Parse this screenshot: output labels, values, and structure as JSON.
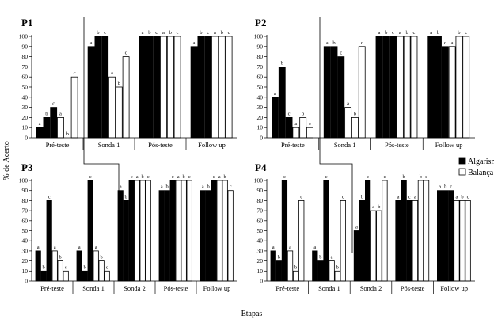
{
  "figure": {
    "ylabel": "% de Acerto",
    "xlabel": "Etapas",
    "legend": [
      {
        "name": "Algarismo",
        "fill": "#000000"
      },
      {
        "name": "Balança",
        "fill": "#ffffff"
      }
    ]
  },
  "chart_data": [
    {
      "type": "bar",
      "title": "P1",
      "ylim": [
        0,
        100
      ],
      "yticks": [
        "0",
        "10",
        "20",
        "30",
        "40",
        "50",
        "60",
        "70",
        "80",
        "90",
        "100"
      ],
      "categories": [
        "Pré-teste",
        "Sonda 1",
        "Pós-teste",
        "Follow up"
      ],
      "series": [
        {
          "name": "Algarismo",
          "values": [
            [
              10,
              20,
              30
            ],
            [
              90,
              100,
              100
            ],
            [
              100,
              100,
              100
            ],
            [
              90,
              100,
              100
            ]
          ],
          "letters": [
            [
              "a",
              "b",
              "c"
            ],
            [
              "a",
              "b",
              "c"
            ],
            [
              "a",
              "b",
              "c"
            ],
            [
              "a",
              "b",
              "c"
            ]
          ]
        },
        {
          "name": "Balança",
          "values": [
            [
              20,
              0,
              60
            ],
            [
              60,
              50,
              80
            ],
            [
              100,
              100,
              100
            ],
            [
              100,
              100,
              100
            ]
          ],
          "letters": [
            [
              "a",
              "b",
              "c"
            ],
            [
              "a",
              "b",
              "c"
            ],
            [
              "a",
              "b",
              "c"
            ],
            [
              "a",
              "b",
              "c"
            ]
          ]
        }
      ]
    },
    {
      "type": "bar",
      "title": "P2",
      "ylim": [
        0,
        100
      ],
      "yticks": [
        "0",
        "10",
        "20",
        "30",
        "40",
        "50",
        "60",
        "70",
        "80",
        "90",
        "100"
      ],
      "categories": [
        "Pré-teste",
        "Sonda 1",
        "Pós-teste",
        "Follow up"
      ],
      "series": [
        {
          "name": "Algarismo",
          "values": [
            [
              40,
              70,
              20
            ],
            [
              90,
              90,
              80
            ],
            [
              100,
              100,
              100
            ],
            [
              100,
              100,
              90
            ]
          ],
          "letters": [
            [
              "a",
              "b",
              "c"
            ],
            [
              "a",
              "b",
              "c"
            ],
            [
              "a",
              "b",
              "c"
            ],
            [
              "a",
              "b",
              "c"
            ]
          ]
        },
        {
          "name": "Balança",
          "values": [
            [
              10,
              20,
              10
            ],
            [
              30,
              20,
              90
            ],
            [
              100,
              100,
              100
            ],
            [
              90,
              100,
              100
            ]
          ],
          "letters": [
            [
              "a",
              "b",
              "c"
            ],
            [
              "a",
              "b",
              "c"
            ],
            [
              "a",
              "b",
              "c"
            ],
            [
              "a",
              "b",
              "c"
            ]
          ]
        }
      ]
    },
    {
      "type": "bar",
      "title": "P3",
      "ylim": [
        0,
        100
      ],
      "yticks": [
        "0",
        "10",
        "20",
        "30",
        "40",
        "50",
        "60",
        "70",
        "80",
        "90",
        "100"
      ],
      "categories": [
        "Pré-teste",
        "Sonda 1",
        "Sonda 2",
        "Pós-teste",
        "Follow up"
      ],
      "series": [
        {
          "name": "Algarismo",
          "values": [
            [
              30,
              10,
              80
            ],
            [
              30,
              10,
              100
            ],
            [
              90,
              80,
              100
            ],
            [
              90,
              90,
              100
            ],
            [
              90,
              90,
              100
            ]
          ],
          "letters": [
            [
              "a",
              "b",
              "c"
            ],
            [
              "a",
              "b",
              "c"
            ],
            [
              "a",
              "b",
              "c"
            ],
            [
              "a",
              "b",
              "c"
            ],
            [
              "a",
              "b",
              "c"
            ]
          ]
        },
        {
          "name": "Balança",
          "values": [
            [
              30,
              20,
              10
            ],
            [
              30,
              20,
              10
            ],
            [
              100,
              100,
              100
            ],
            [
              100,
              100,
              100
            ],
            [
              100,
              100,
              90
            ]
          ],
          "letters": [
            [
              "a",
              "b",
              "c"
            ],
            [
              "a",
              "b",
              "c"
            ],
            [
              "a",
              "b",
              "c"
            ],
            [
              "a",
              "b",
              "c"
            ],
            [
              "a",
              "b",
              "c"
            ]
          ]
        }
      ]
    },
    {
      "type": "bar",
      "title": "P4",
      "ylim": [
        0,
        100
      ],
      "yticks": [
        "0",
        "10",
        "20",
        "30",
        "40",
        "50",
        "60",
        "70",
        "80",
        "90",
        "100"
      ],
      "categories": [
        "Pré-teste",
        "Sonda 1",
        "Sonda 2",
        "Pós-teste",
        "Follow up"
      ],
      "series": [
        {
          "name": "Algarismo",
          "values": [
            [
              30,
              20,
              100
            ],
            [
              30,
              20,
              100
            ],
            [
              50,
              80,
              100
            ],
            [
              80,
              100,
              80
            ],
            [
              90,
              90,
              90
            ]
          ],
          "letters": [
            [
              "a",
              "b",
              "c"
            ],
            [
              "a",
              "b",
              "c"
            ],
            [
              "a",
              "b",
              "c"
            ],
            [
              "a",
              "b",
              "c"
            ],
            [
              "a",
              "b",
              "c"
            ]
          ]
        },
        {
          "name": "Balança",
          "values": [
            [
              30,
              10,
              80
            ],
            [
              20,
              10,
              80
            ],
            [
              70,
              70,
              100
            ],
            [
              80,
              100,
              100
            ],
            [
              80,
              80,
              80
            ]
          ],
          "letters": [
            [
              "a",
              "b",
              "c"
            ],
            [
              "a",
              "b",
              "c"
            ],
            [
              "a",
              "b",
              "c"
            ],
            [
              "a",
              "b",
              "c"
            ],
            [
              "a",
              "b",
              "c"
            ]
          ]
        }
      ]
    }
  ]
}
